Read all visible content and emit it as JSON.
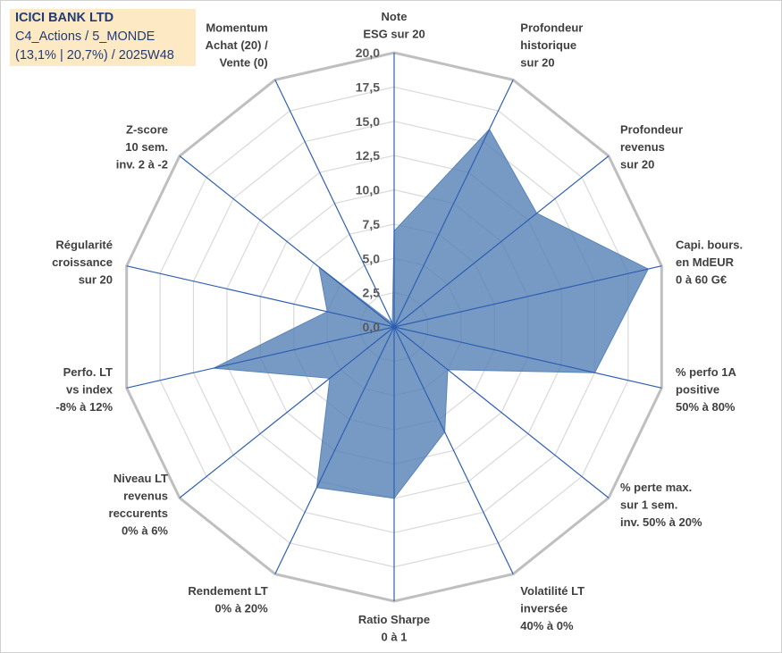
{
  "title_box": {
    "line1": "ICICI BANK LTD",
    "line2": "C4_Actions / 5_MONDE",
    "line3": "(13,1% | 20,7%) / 2025W48"
  },
  "chart_data": {
    "type": "radar",
    "title": "ICICI BANK LTD",
    "rmin": 0,
    "rmax": 20,
    "ticks": [
      "0,0",
      "2,5",
      "5,0",
      "7,5",
      "10,0",
      "12,5",
      "15,0",
      "17,5",
      "20,0"
    ],
    "tick_values": [
      0,
      2.5,
      5,
      7.5,
      10,
      12.5,
      15,
      17.5,
      20
    ],
    "grid_rings": 8,
    "fill_color": "#4f7eb3",
    "outer_grid_color": "#bfbfbf",
    "spoke_color": "#2f5fb3",
    "axes": [
      {
        "label": [
          "Note",
          "ESG sur 20"
        ],
        "value": 7.0
      },
      {
        "label": [
          "Profondeur",
          "historique",
          "sur 20"
        ],
        "value": 16.0
      },
      {
        "label": [
          "Profondeur",
          "revenus",
          "sur 20"
        ],
        "value": 13.3
      },
      {
        "label": [
          "Capi. bours.",
          "en MdEUR",
          "0 à 60 G€"
        ],
        "value": 19.0
      },
      {
        "label": [
          "% perfo 1A",
          "positive",
          "50% à 80%"
        ],
        "value": 15.0
      },
      {
        "label": [
          "% perte max.",
          "sur 1 sem.",
          "inv. 50% à 20%"
        ],
        "value": 5.0
      },
      {
        "label": [
          "Volatilité LT",
          "inversée",
          "40% à 0%"
        ],
        "value": 8.5
      },
      {
        "label": [
          "Ratio Sharpe",
          "0 à 1"
        ],
        "value": 12.5
      },
      {
        "label": [
          "Rendement LT",
          "0% à 20%"
        ],
        "value": 13.0
      },
      {
        "label": [
          "Niveau LT",
          "revenus",
          "reccurents",
          "0% à 6%"
        ],
        "value": 6.0
      },
      {
        "label": [
          "Perfo. LT",
          "vs index",
          "-8% à 12%"
        ],
        "value": 13.5
      },
      {
        "label": [
          "Régularité",
          "croissance",
          "sur 20"
        ],
        "value": 5.0
      },
      {
        "label": [
          "Z-score",
          "10 sem.",
          "inv. 2 à -2"
        ],
        "value": 7.0
      },
      {
        "label": [
          "Momentum",
          "Achat (20) /",
          "Vente (0)"
        ],
        "value": 0.3
      }
    ]
  }
}
